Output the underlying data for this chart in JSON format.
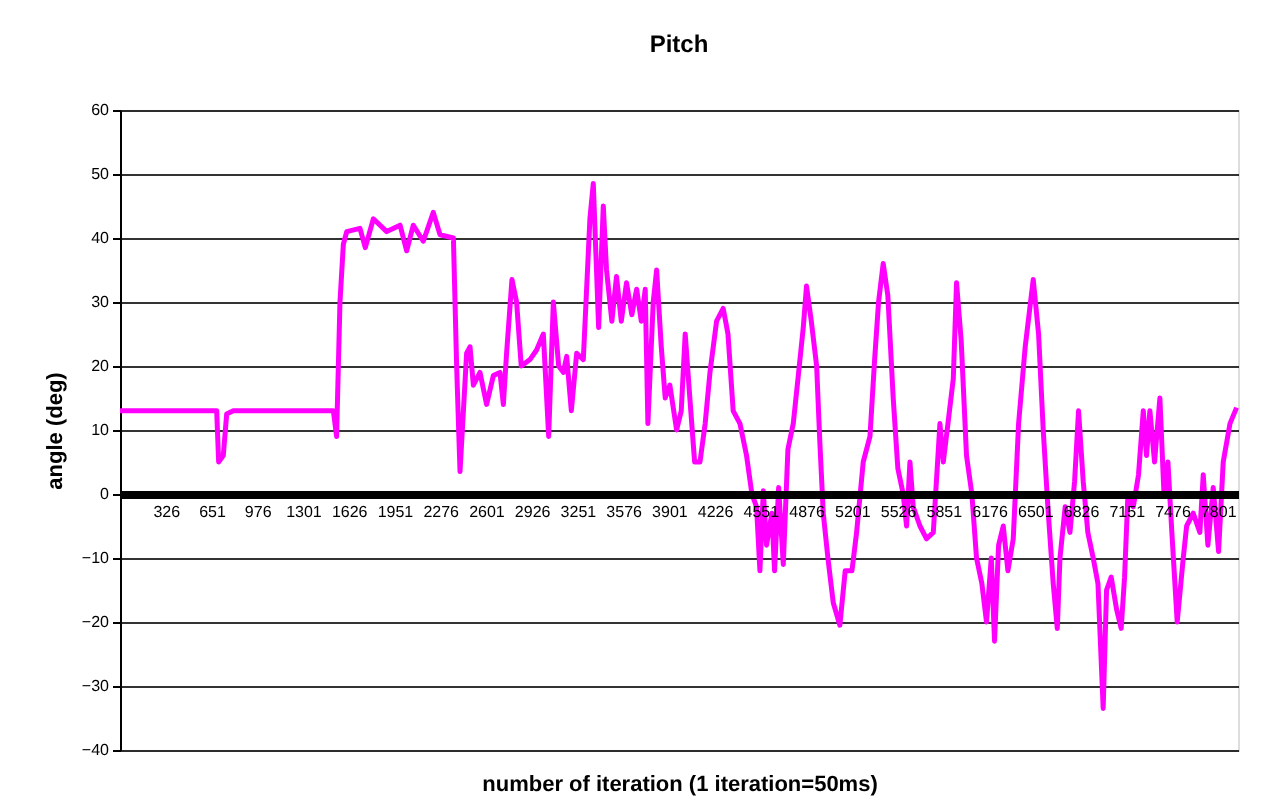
{
  "chart_data": {
    "type": "line",
    "title": "Pitch",
    "xlabel": "number of iteration (1 iteration=50ms)",
    "ylabel": "angle (deg)",
    "xlim": [
      1,
      7945
    ],
    "xticks": [
      {
        "value": 1,
        "label": null
      },
      326,
      651,
      976,
      1301,
      1626,
      1951,
      2276,
      2601,
      2926,
      3251,
      3576,
      3901,
      4226,
      4551,
      4876,
      5201,
      5526,
      5851,
      6176,
      6501,
      6826,
      7151,
      7476,
      7801
    ],
    "ylim": [
      -40,
      60
    ],
    "yticks": [
      -40,
      -30,
      -20,
      -10,
      0,
      10,
      20,
      30,
      40,
      50,
      60
    ],
    "grid": "y",
    "marker": "none",
    "line_style": "solid",
    "series": [
      {
        "color": "#ff00ff",
        "x": [
          1,
          688,
          702,
          735,
          759,
          806,
          1517,
          1540,
          1564,
          1588,
          1612,
          1706,
          1744,
          1801,
          1896,
          1991,
          2038,
          2085,
          2156,
          2227,
          2275,
          2370,
          2393,
          2417,
          2464,
          2488,
          2512,
          2559,
          2606,
          2654,
          2701,
          2725,
          2748,
          2786,
          2819,
          2852,
          2914,
          2961,
          3009,
          3047,
          3080,
          3118,
          3151,
          3175,
          3208,
          3246,
          3293,
          3340,
          3364,
          3402,
          3435,
          3458,
          3496,
          3529,
          3563,
          3600,
          3638,
          3672,
          3705,
          3733,
          3752,
          3790,
          3814,
          3847,
          3875,
          3908,
          3956,
          3989,
          4017,
          4050,
          4084,
          4122,
          4159,
          4193,
          4240,
          4287,
          4321,
          4358,
          4406,
          4453,
          4491,
          4524,
          4548,
          4572,
          4595,
          4633,
          4652,
          4681,
          4714,
          4747,
          4785,
          4823,
          4856,
          4879,
          4913,
          4951,
          4974,
          4998,
          5031,
          5069,
          5116,
          5154,
          5202,
          5235,
          5282,
          5330,
          5363,
          5391,
          5424,
          5457,
          5495,
          5528,
          5566,
          5590,
          5614,
          5637,
          5685,
          5732,
          5780,
          5827,
          5851,
          5884,
          5922,
          5945,
          5978,
          6016,
          6054,
          6087,
          6125,
          6158,
          6192,
          6215,
          6244,
          6277,
          6310,
          6348,
          6386,
          6433,
          6490,
          6528,
          6561,
          6594,
          6632,
          6661,
          6680,
          6717,
          6751,
          6784,
          6812,
          6845,
          6878,
          6916,
          6950,
          6987,
          7011,
          7044,
          7082,
          7115,
          7139,
          7163,
          7201,
          7238,
          7272,
          7295,
          7319,
          7352,
          7390,
          7419,
          7447,
          7475,
          7513,
          7556,
          7580,
          7627,
          7674,
          7698,
          7731,
          7769,
          7807,
          7840,
          7888,
          7935
        ],
        "values": [
          13,
          13,
          5,
          6,
          12.5,
          13,
          13,
          9,
          30,
          39,
          41,
          41.5,
          38.5,
          43,
          41,
          42,
          38,
          42,
          39.5,
          44,
          40.5,
          40,
          20,
          3.5,
          22,
          23,
          17,
          19,
          14,
          18.5,
          19,
          14,
          22,
          33.5,
          30,
          20,
          21,
          22.5,
          25,
          9,
          30,
          20,
          19,
          21.5,
          13,
          22,
          21,
          43,
          48.5,
          26,
          45,
          35,
          27,
          34,
          27,
          33,
          28,
          32,
          27,
          32,
          11,
          30,
          35,
          23,
          15,
          17,
          10,
          13,
          25,
          15,
          5,
          5,
          11,
          19,
          27,
          29,
          25,
          13,
          11,
          6,
          0,
          -2,
          -12,
          0.5,
          -8,
          -3,
          -12,
          1,
          -11,
          7,
          11,
          19,
          26,
          32.5,
          27,
          20,
          8,
          -3,
          -10,
          -17,
          -20.5,
          -12,
          -12,
          -6,
          5,
          9,
          21,
          30,
          36,
          31,
          15,
          4,
          0,
          -5,
          5,
          -2,
          -5,
          -7,
          -6,
          11,
          5,
          11,
          18,
          33,
          24,
          6,
          0,
          -10,
          -14,
          -20,
          -10,
          -23,
          -8,
          -5,
          -12,
          -7,
          11,
          23,
          33.5,
          25,
          10,
          -2,
          -14,
          -21,
          -10,
          -2,
          -6,
          2,
          13,
          2,
          -6,
          -10,
          -14,
          -33.5,
          -15,
          -13,
          -18,
          -21,
          -13,
          0,
          -2,
          3,
          13,
          6,
          13,
          5,
          15,
          0,
          5,
          -6,
          -20,
          -10,
          -5,
          -3,
          -6,
          3,
          -8,
          1,
          -9,
          5,
          11,
          13.5
        ]
      }
    ]
  }
}
